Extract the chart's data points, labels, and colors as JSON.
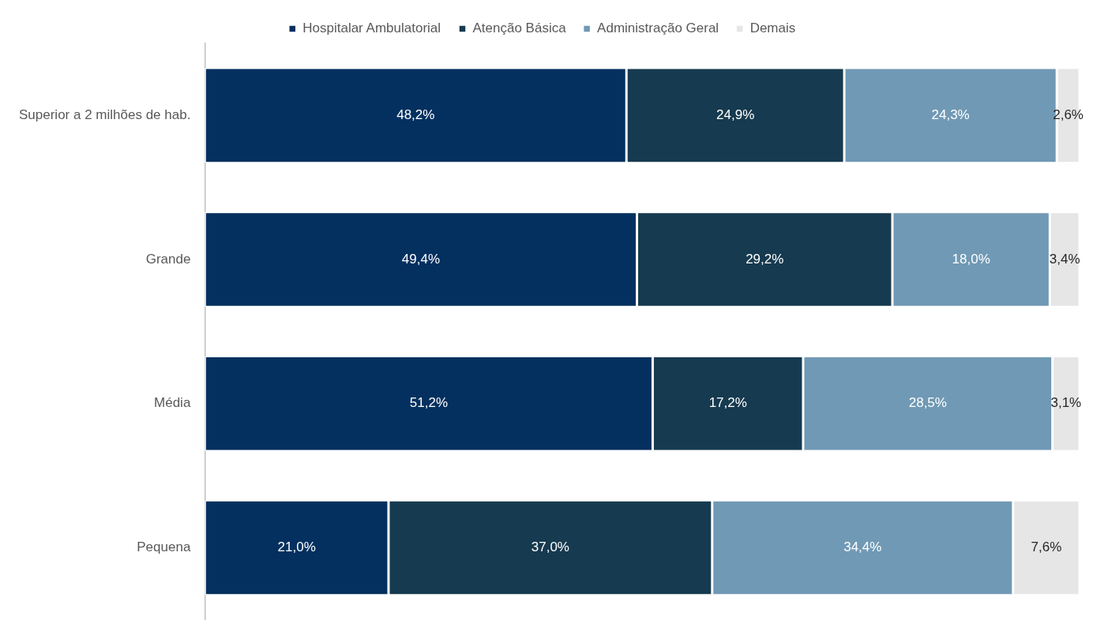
{
  "chart_data": {
    "type": "bar",
    "orientation": "horizontal",
    "stacked": true,
    "legend": "top",
    "tick_labels": "y",
    "categories": [
      "Superior a 2 milhões de hab.",
      "Grande",
      "Média",
      "Pequena"
    ],
    "series": [
      {
        "name": "Hospitalar Ambulatorial",
        "color": "#03305f",
        "values": [
          48.2,
          49.4,
          51.2,
          21.0
        ],
        "value_labels": [
          "48,2%",
          "49,4%",
          "51,2%",
          "21,0%"
        ]
      },
      {
        "name": "Atenção Básica",
        "color": "#163a4f",
        "values": [
          24.9,
          29.2,
          17.2,
          37.0
        ],
        "value_labels": [
          "24,9%",
          "29,2%",
          "17,2%",
          "37,0%"
        ]
      },
      {
        "name": "Administração Geral",
        "color": "#7099b5",
        "values": [
          24.3,
          18.0,
          28.5,
          34.4
        ],
        "value_labels": [
          "24,3%",
          "18,0%",
          "28,5%",
          "34,4%"
        ]
      },
      {
        "name": "Demais",
        "color": "#e6e6e6",
        "values": [
          2.6,
          3.4,
          3.1,
          7.6
        ],
        "value_labels": [
          "2,6%",
          "3,4%",
          "3,1%",
          "7,6%"
        ]
      }
    ]
  }
}
